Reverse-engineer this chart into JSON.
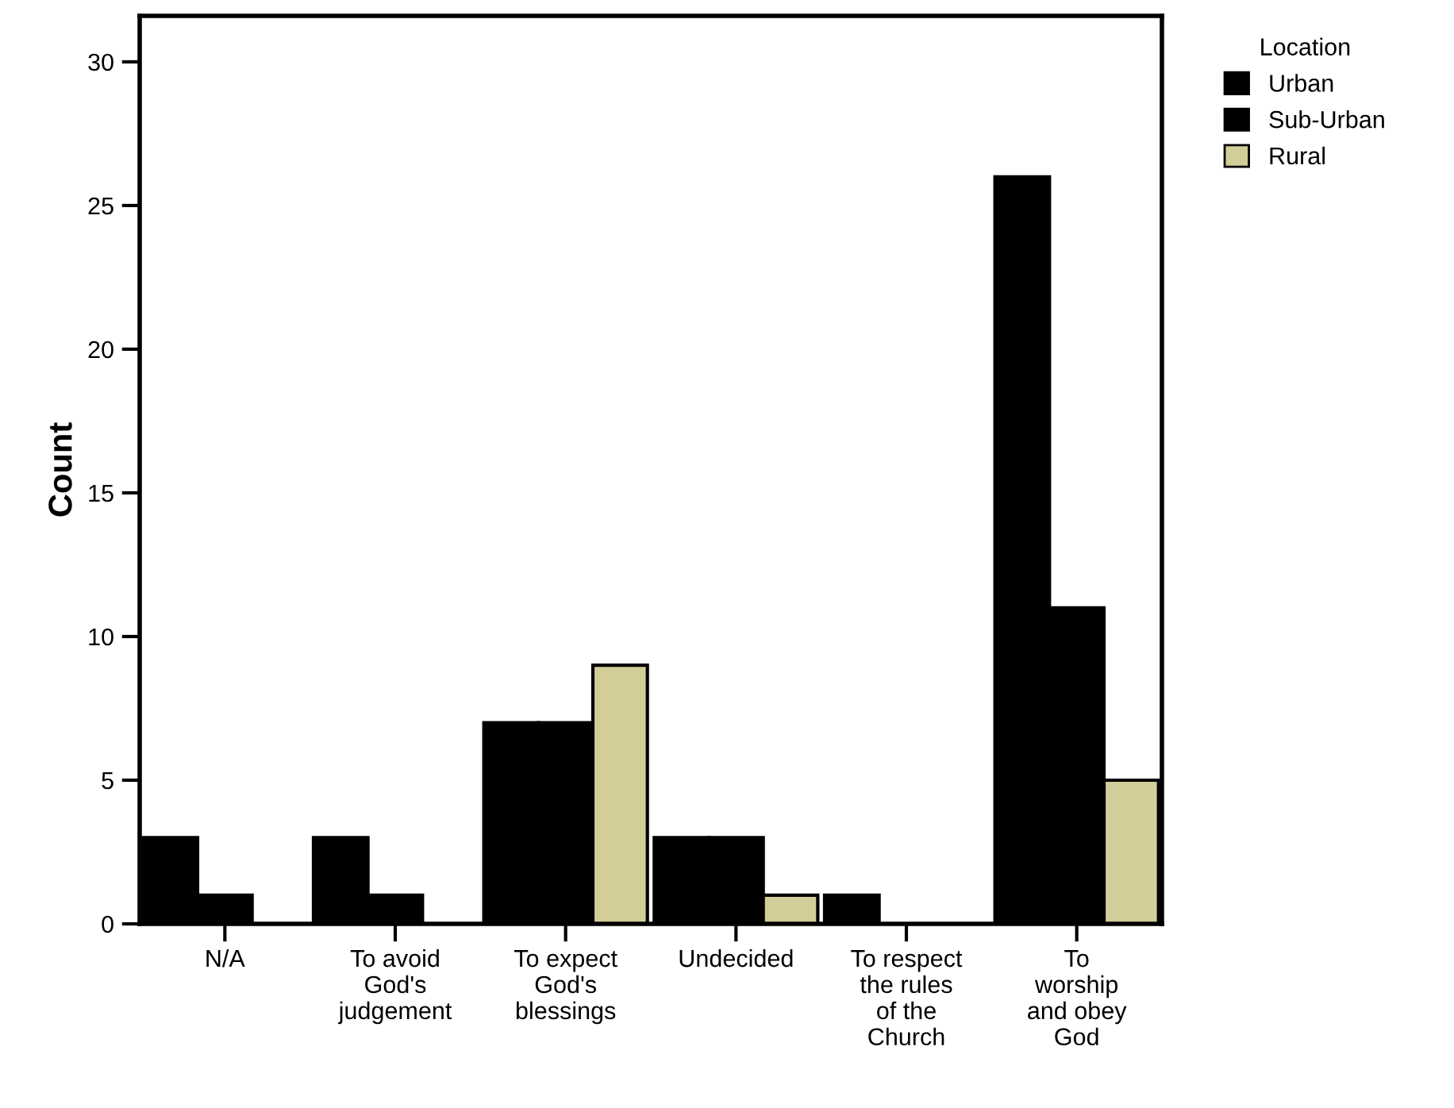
{
  "chart_data": {
    "type": "bar",
    "ylabel": "Count",
    "legend_title": "Location",
    "legend": "top right",
    "categories": [
      "N/A",
      "To avoid\nGod's\njudgement",
      "To expect\nGod's\nblessings",
      "Undecided",
      "To respect\nthe rules\nof the\nChurch",
      "To\nworship\nand obey\nGod"
    ],
    "series": [
      {
        "name": "Urban",
        "color": "#000000",
        "values": [
          3,
          3,
          7,
          3,
          1,
          26
        ]
      },
      {
        "name": "Sub-Urban",
        "color": "#000000",
        "values": [
          1,
          1,
          7,
          3,
          null,
          11
        ]
      },
      {
        "name": "Rural",
        "color": "#d3cd99",
        "values": [
          null,
          null,
          9,
          1,
          null,
          5
        ]
      }
    ],
    "ylim": [
      0,
      31.6
    ],
    "yticks": [
      0,
      5,
      10,
      15,
      20,
      25,
      30
    ],
    "grid": false
  }
}
